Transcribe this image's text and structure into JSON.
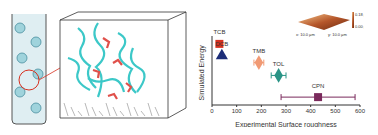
{
  "chart_data": {
    "type": "scatter",
    "xlabel": "Experimental Surface roughness",
    "ylabel": "Simulated Energy",
    "xlim": [
      0,
      600
    ],
    "xticks": [
      0,
      100,
      200,
      300,
      400,
      500,
      600
    ],
    "ylim": [
      0,
      7
    ],
    "tick_labels": "x",
    "grid": false,
    "series": [
      {
        "name": "TCB",
        "color": "#d7301f",
        "marker": "square",
        "x": [
          30
        ],
        "y": [
          6.2
        ]
      },
      {
        "name": "DCB",
        "color": "#1c2d78",
        "marker": "triangle",
        "x": [
          40
        ],
        "y": [
          5.0
        ]
      },
      {
        "name": "TMB",
        "color": "#f19a74",
        "marker": "diamond",
        "x": [
          190
        ],
        "y": [
          4.3
        ],
        "x_error": [
          20
        ]
      },
      {
        "name": "TOL",
        "color": "#2a9486",
        "marker": "diamond",
        "x": [
          270
        ],
        "y": [
          3.0
        ],
        "x_error": [
          30
        ]
      },
      {
        "name": "CPN",
        "color": "#7a2a5c",
        "marker": "square",
        "x": [
          430
        ],
        "y": [
          0.8
        ],
        "x_error": [
          150
        ]
      }
    ],
    "annotations": [
      "0.18 µm",
      "0.00 µm",
      "x: 10.0 µm",
      "y: 10.0 µm"
    ]
  }
}
